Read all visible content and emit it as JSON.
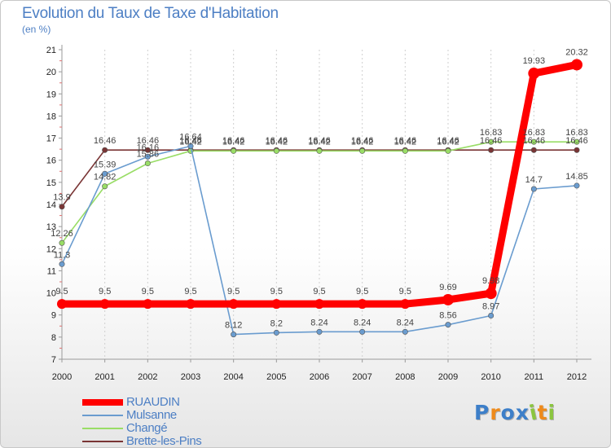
{
  "title": "Evolution du Taux de Taxe d'Habitation",
  "subtitle": "(en %)",
  "chart_data": {
    "type": "line",
    "title": "Evolution du Taux de Taxe d'Habitation",
    "ylabel": "(en %)",
    "xlabel": "",
    "x": [
      "2000",
      "2001",
      "2002",
      "2003",
      "2004",
      "2005",
      "2006",
      "2007",
      "2008",
      "2009",
      "2010",
      "2011",
      "2012"
    ],
    "ylim": [
      7,
      21
    ],
    "yticks": [
      7,
      8,
      9,
      10,
      11,
      12,
      13,
      14,
      15,
      16,
      17,
      18,
      19,
      20,
      21
    ],
    "grid": "vertical-dashed",
    "legend": "bottom-left",
    "series": [
      {
        "name": "RUAUDIN",
        "color": "#ff0000",
        "values": [
          9.5,
          9.5,
          9.5,
          9.5,
          9.5,
          9.5,
          9.5,
          9.5,
          9.5,
          9.69,
          9.98,
          19.93,
          20.32
        ],
        "labels": [
          "9.5",
          "9.5",
          "9.5",
          "9.5",
          "9.5",
          "9.5",
          "9.5",
          "9.5",
          "9.5",
          "9.69",
          "9.98",
          "19.93",
          "20.32"
        ]
      },
      {
        "name": "Mulsanne",
        "color": "#6a9ccf",
        "values": [
          11.3,
          15.39,
          16.16,
          16.64,
          8.12,
          8.2,
          8.24,
          8.24,
          8.24,
          8.56,
          8.97,
          14.7,
          14.85
        ],
        "labels": [
          "11.3",
          "15.39",
          "16.16",
          "16.64",
          "8.12",
          "8.2",
          "8.24",
          "8.24",
          "8.24",
          "8.56",
          "8.97",
          "14.7",
          "14.85"
        ]
      },
      {
        "name": "Changé",
        "color": "#99dd66",
        "values": [
          12.26,
          14.82,
          15.86,
          16.42,
          16.42,
          16.42,
          16.42,
          16.42,
          16.42,
          16.42,
          16.83,
          16.83,
          16.83
        ],
        "labels": [
          "12.26",
          "14.82",
          "15.86",
          "16.42",
          "16.42",
          "16.42",
          "16.42",
          "16.42",
          "16.42",
          "16.42",
          "16.83",
          "16.83",
          "16.83"
        ]
      },
      {
        "name": "Brette-les-Pins",
        "color": "#7a3535",
        "values": [
          13.9,
          16.46,
          16.46,
          16.46,
          16.46,
          16.46,
          16.46,
          16.46,
          16.46,
          16.46,
          16.46,
          16.46,
          16.46
        ],
        "labels": [
          "13.9",
          "16.46",
          "16.46",
          "16.46",
          "16.46",
          "16.46",
          "16.46",
          "16.46",
          "16.46",
          "16.46",
          "16.46",
          "16.46",
          "16.46"
        ]
      }
    ]
  },
  "legend": {
    "items": [
      {
        "label": "RUAUDIN",
        "color": "#ff0000"
      },
      {
        "label": "Mulsanne",
        "color": "#6a9ccf"
      },
      {
        "label": "Changé",
        "color": "#99dd66"
      },
      {
        "label": "Brette-les-Pins",
        "color": "#7a3535"
      }
    ]
  },
  "logo": {
    "text": "Proxiti",
    "letter_colors": [
      "#3d7fc9",
      "#ee8a1a",
      "#3d7fc9",
      "#3d7fc9",
      "#8bc53f",
      "#ee8a1a",
      "#8bc53f"
    ]
  }
}
